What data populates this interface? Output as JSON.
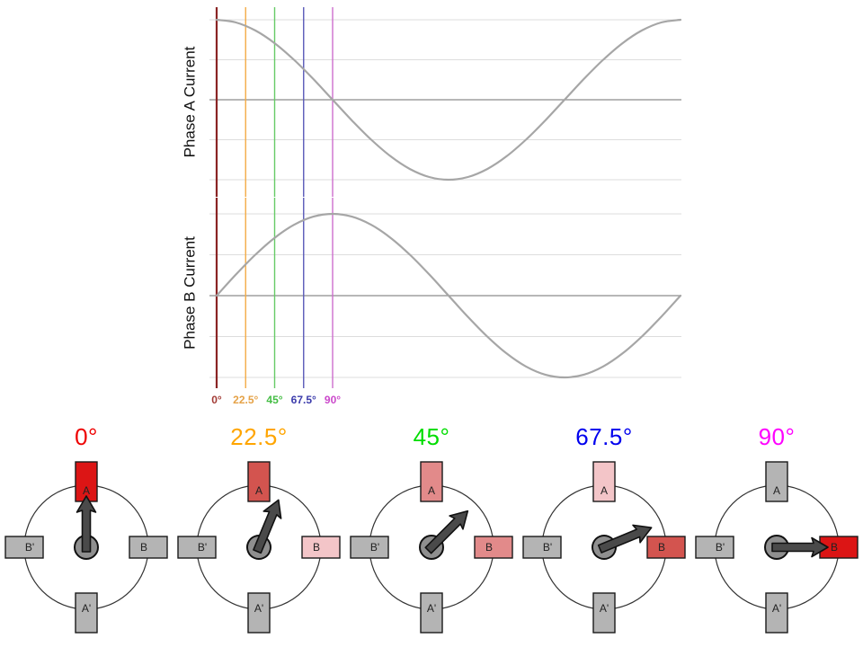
{
  "chart_data": [
    {
      "type": "line",
      "ylabel": "Phase A Current",
      "x": [
        0,
        15,
        30,
        45,
        60,
        75,
        90,
        105,
        120,
        135,
        150,
        165,
        180,
        195,
        210,
        225,
        240,
        255,
        270,
        285,
        300,
        315,
        330,
        345,
        360
      ],
      "values": [
        1,
        0.966,
        0.866,
        0.707,
        0.5,
        0.259,
        0,
        -0.259,
        -0.5,
        -0.707,
        -0.866,
        -0.966,
        -1,
        -0.966,
        -0.866,
        -0.707,
        -0.5,
        -0.259,
        0,
        0.259,
        0.5,
        0.707,
        0.866,
        0.966,
        1
      ],
      "xlim": [
        0,
        360
      ],
      "ylim": [
        -1.2,
        1.2
      ],
      "grid": "on",
      "line_color": "#a6a6a6",
      "zero_line_color": "#8c8c8c",
      "grid_color": "#dddddd"
    },
    {
      "type": "line",
      "ylabel": "Phase B Current",
      "x": [
        0,
        15,
        30,
        45,
        60,
        75,
        90,
        105,
        120,
        135,
        150,
        165,
        180,
        195,
        210,
        225,
        240,
        255,
        270,
        285,
        300,
        315,
        330,
        345,
        360
      ],
      "values": [
        0,
        0.259,
        0.5,
        0.707,
        0.866,
        0.966,
        1,
        0.966,
        0.866,
        0.707,
        0.5,
        0.259,
        0,
        -0.259,
        -0.5,
        -0.707,
        -0.866,
        -0.966,
        -1,
        -0.966,
        -0.866,
        -0.707,
        -0.5,
        -0.259,
        0
      ],
      "xlim": [
        0,
        360
      ],
      "ylim": [
        -1.2,
        1.2
      ],
      "grid": "on",
      "line_color": "#a6a6a6",
      "zero_line_color": "#8c8c8c",
      "grid_color": "#dddddd"
    }
  ],
  "marked_angles": [
    {
      "label": "0°",
      "deg": 0,
      "line_color": "#8a2424",
      "line_width": 2.2,
      "tick_color": "#a23a34"
    },
    {
      "label": "22.5°",
      "deg": 22.5,
      "line_color": "#f3ab45",
      "line_width": 1.4,
      "tick_color": "#e5a247"
    },
    {
      "label": "45°",
      "deg": 45,
      "line_color": "#66cb66",
      "line_width": 1.4,
      "tick_color": "#44bd44"
    },
    {
      "label": "67.5°",
      "deg": 67.5,
      "line_color": "#5a5ab8",
      "line_width": 1.4,
      "tick_color": "#3b3bab"
    },
    {
      "label": "90°",
      "deg": 90,
      "line_color": "#cd6ecd",
      "line_width": 1.4,
      "tick_color": "#cb49cb"
    }
  ],
  "motor_diagrams": [
    {
      "title": "0°",
      "title_color": "#ee0000",
      "arrow_deg": 0,
      "coil_fills": {
        "A": "#dc1515",
        "B": "#b4b4b4",
        "A_prime": "#b4b4b4",
        "B_prime": "#b4b4b4"
      }
    },
    {
      "title": "22.5°",
      "title_color": "#ffa500",
      "arrow_deg": 22.5,
      "coil_fills": {
        "A": "#d3544f",
        "B": "#f3c5c8",
        "A_prime": "#b4b4b4",
        "B_prime": "#b4b4b4"
      }
    },
    {
      "title": "45°",
      "title_color": "#00dd00",
      "arrow_deg": 45,
      "coil_fills": {
        "A": "#e28a8a",
        "B": "#e28a8a",
        "A_prime": "#b4b4b4",
        "B_prime": "#b4b4b4"
      }
    },
    {
      "title": "67.5°",
      "title_color": "#0000ee",
      "arrow_deg": 67.5,
      "coil_fills": {
        "A": "#f3c5c8",
        "B": "#d3544f",
        "A_prime": "#b4b4b4",
        "B_prime": "#b4b4b4"
      }
    },
    {
      "title": "90°",
      "title_color": "#ff00ff",
      "arrow_deg": 90,
      "coil_fills": {
        "A": "#b4b4b4",
        "B": "#dc1515",
        "A_prime": "#b4b4b4",
        "B_prime": "#b4b4b4"
      }
    }
  ],
  "coil_labels": {
    "A": "A",
    "B": "B",
    "A_prime": "A'",
    "B_prime": "B'"
  },
  "colors": {
    "coil_border": "#1a1a1a",
    "coil_label": "#222222",
    "stator_circle": "#333333",
    "arrow_fill": "#4a4a4a",
    "arrow_border": "#111111",
    "hub_fill": "#8f8f8f",
    "axis_label": "#111111"
  }
}
